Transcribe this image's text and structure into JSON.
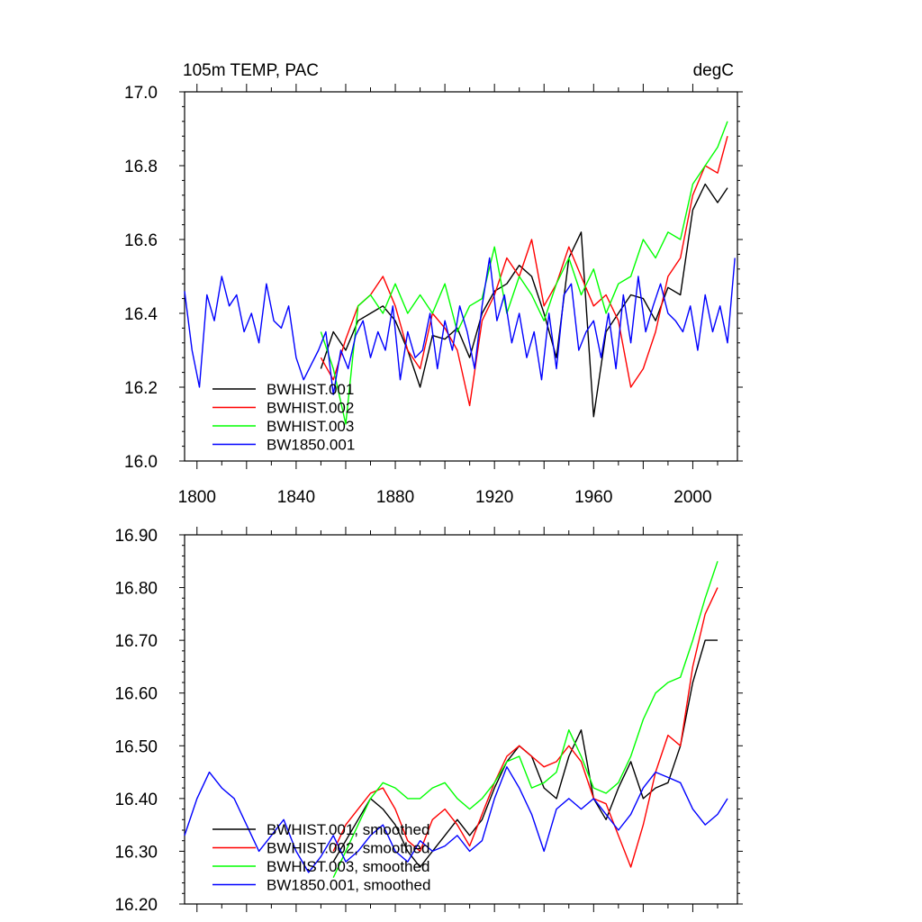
{
  "chart_data": [
    {
      "type": "line",
      "title_left": "105m TEMP, PAC",
      "title_right": "degC",
      "xlim": [
        1795,
        2018
      ],
      "ylim": [
        16.0,
        17.0
      ],
      "xticks": [
        "1800",
        "1840",
        "1880",
        "1920",
        "1960",
        "2000"
      ],
      "yticks": [
        "16.0",
        "16.2",
        "16.4",
        "16.6",
        "16.8",
        "17.0"
      ],
      "legend_position": "bottom-left",
      "series": [
        {
          "name": "BWHIST.001",
          "color": "#000000",
          "x": [
            1850,
            1855,
            1860,
            1865,
            1870,
            1875,
            1880,
            1885,
            1890,
            1895,
            1900,
            1905,
            1910,
            1915,
            1920,
            1925,
            1930,
            1935,
            1940,
            1945,
            1950,
            1955,
            1960,
            1965,
            1970,
            1975,
            1980,
            1985,
            1990,
            1995,
            2000,
            2005,
            2010,
            2014
          ],
          "values": [
            16.25,
            16.35,
            16.3,
            16.38,
            16.4,
            16.42,
            16.38,
            16.3,
            16.2,
            16.34,
            16.33,
            16.36,
            16.28,
            16.4,
            16.46,
            16.48,
            16.53,
            16.5,
            16.4,
            16.28,
            16.55,
            16.62,
            16.12,
            16.35,
            16.4,
            16.45,
            16.44,
            16.38,
            16.47,
            16.45,
            16.68,
            16.75,
            16.7,
            16.74
          ]
        },
        {
          "name": "BWHIST.002",
          "color": "#ff0000",
          "x": [
            1850,
            1855,
            1860,
            1865,
            1870,
            1875,
            1880,
            1885,
            1890,
            1895,
            1900,
            1905,
            1910,
            1915,
            1920,
            1925,
            1930,
            1935,
            1940,
            1945,
            1950,
            1955,
            1960,
            1965,
            1970,
            1975,
            1980,
            1985,
            1990,
            1995,
            2000,
            2005,
            2010,
            2014
          ],
          "values": [
            16.28,
            16.22,
            16.33,
            16.42,
            16.45,
            16.5,
            16.42,
            16.3,
            16.25,
            16.4,
            16.36,
            16.3,
            16.15,
            16.38,
            16.45,
            16.55,
            16.5,
            16.6,
            16.42,
            16.48,
            16.58,
            16.5,
            16.42,
            16.45,
            16.38,
            16.2,
            16.25,
            16.35,
            16.5,
            16.55,
            16.72,
            16.8,
            16.78,
            16.88
          ]
        },
        {
          "name": "BWHIST.003",
          "color": "#00ff00",
          "x": [
            1850,
            1855,
            1860,
            1865,
            1870,
            1875,
            1880,
            1885,
            1890,
            1895,
            1900,
            1905,
            1910,
            1915,
            1920,
            1925,
            1930,
            1935,
            1940,
            1945,
            1950,
            1955,
            1960,
            1965,
            1970,
            1975,
            1980,
            1985,
            1990,
            1995,
            2000,
            2005,
            2010,
            2014
          ],
          "values": [
            16.35,
            16.25,
            16.1,
            16.42,
            16.45,
            16.4,
            16.48,
            16.4,
            16.45,
            16.4,
            16.48,
            16.35,
            16.42,
            16.44,
            16.58,
            16.4,
            16.5,
            16.45,
            16.38,
            16.48,
            16.55,
            16.45,
            16.52,
            16.4,
            16.48,
            16.5,
            16.6,
            16.55,
            16.62,
            16.6,
            16.75,
            16.8,
            16.85,
            16.92
          ]
        },
        {
          "name": "BW1850.001",
          "color": "#0000ff",
          "x": [
            1795,
            1798,
            1801,
            1804,
            1807,
            1810,
            1813,
            1816,
            1819,
            1822,
            1825,
            1828,
            1831,
            1834,
            1837,
            1840,
            1843,
            1846,
            1849,
            1852,
            1855,
            1858,
            1861,
            1864,
            1867,
            1870,
            1873,
            1876,
            1879,
            1882,
            1885,
            1888,
            1891,
            1894,
            1897,
            1900,
            1903,
            1906,
            1909,
            1912,
            1915,
            1918,
            1921,
            1924,
            1927,
            1930,
            1933,
            1936,
            1939,
            1942,
            1945,
            1948,
            1951,
            1954,
            1957,
            1960,
            1963,
            1966,
            1969,
            1972,
            1975,
            1978,
            1981,
            1984,
            1987,
            1990,
            1993,
            1996,
            1999,
            2002,
            2005,
            2008,
            2011,
            2014,
            2017
          ],
          "values": [
            16.46,
            16.3,
            16.2,
            16.45,
            16.38,
            16.5,
            16.42,
            16.45,
            16.35,
            16.4,
            16.32,
            16.48,
            16.38,
            16.36,
            16.42,
            16.28,
            16.22,
            16.26,
            16.3,
            16.35,
            16.18,
            16.3,
            16.25,
            16.34,
            16.38,
            16.28,
            16.35,
            16.3,
            16.42,
            16.22,
            16.35,
            16.28,
            16.3,
            16.4,
            16.25,
            16.38,
            16.3,
            16.42,
            16.35,
            16.25,
            16.42,
            16.55,
            16.38,
            16.45,
            16.32,
            16.4,
            16.28,
            16.35,
            16.22,
            16.4,
            16.25,
            16.45,
            16.48,
            16.3,
            16.35,
            16.38,
            16.28,
            16.4,
            16.25,
            16.45,
            16.32,
            16.5,
            16.35,
            16.42,
            16.48,
            16.4,
            16.38,
            16.35,
            16.42,
            16.3,
            16.45,
            16.35,
            16.42,
            16.32,
            16.55
          ]
        }
      ]
    },
    {
      "type": "line",
      "xlim": [
        1795,
        2018
      ],
      "ylim": [
        16.2,
        16.9
      ],
      "yticks": [
        "16.20",
        "16.30",
        "16.40",
        "16.50",
        "16.60",
        "16.70",
        "16.80",
        "16.90"
      ],
      "legend_position": "bottom-left",
      "series": [
        {
          "name": "BWHIST.001, smoothed",
          "color": "#000000",
          "x": [
            1855,
            1860,
            1865,
            1870,
            1875,
            1880,
            1885,
            1890,
            1895,
            1900,
            1905,
            1910,
            1915,
            1920,
            1925,
            1930,
            1935,
            1940,
            1945,
            1950,
            1955,
            1960,
            1965,
            1970,
            1975,
            1980,
            1985,
            1990,
            1995,
            2000,
            2005,
            2010
          ],
          "values": [
            16.28,
            16.32,
            16.36,
            16.4,
            16.38,
            16.35,
            16.3,
            16.27,
            16.3,
            16.33,
            16.36,
            16.33,
            16.36,
            16.42,
            16.47,
            16.5,
            16.48,
            16.42,
            16.4,
            16.48,
            16.53,
            16.4,
            16.36,
            16.42,
            16.47,
            16.4,
            16.42,
            16.43,
            16.5,
            16.62,
            16.7,
            16.7
          ]
        },
        {
          "name": "BWHIST.002, smoothed",
          "color": "#ff0000",
          "x": [
            1855,
            1860,
            1865,
            1870,
            1875,
            1880,
            1885,
            1890,
            1895,
            1900,
            1905,
            1910,
            1915,
            1920,
            1925,
            1930,
            1935,
            1940,
            1945,
            1950,
            1955,
            1960,
            1965,
            1970,
            1975,
            1980,
            1985,
            1990,
            1995,
            2000,
            2005,
            2010
          ],
          "values": [
            16.3,
            16.35,
            16.38,
            16.41,
            16.42,
            16.38,
            16.32,
            16.3,
            16.36,
            16.38,
            16.35,
            16.31,
            16.37,
            16.43,
            16.48,
            16.5,
            16.48,
            16.46,
            16.47,
            16.5,
            16.47,
            16.4,
            16.39,
            16.33,
            16.27,
            16.35,
            16.45,
            16.52,
            16.5,
            16.65,
            16.75,
            16.8
          ]
        },
        {
          "name": "BWHIST.003, smoothed",
          "color": "#00ff00",
          "x": [
            1855,
            1860,
            1865,
            1870,
            1875,
            1880,
            1885,
            1890,
            1895,
            1900,
            1905,
            1910,
            1915,
            1920,
            1925,
            1930,
            1935,
            1940,
            1945,
            1950,
            1955,
            1960,
            1965,
            1970,
            1975,
            1980,
            1985,
            1990,
            1995,
            2000,
            2005,
            2010
          ],
          "values": [
            16.25,
            16.3,
            16.35,
            16.4,
            16.43,
            16.42,
            16.4,
            16.4,
            16.42,
            16.43,
            16.4,
            16.38,
            16.4,
            16.43,
            16.47,
            16.48,
            16.42,
            16.43,
            16.45,
            16.53,
            16.48,
            16.42,
            16.41,
            16.43,
            16.48,
            16.55,
            16.6,
            16.62,
            16.63,
            16.7,
            16.78,
            16.85
          ]
        },
        {
          "name": "BW1850.001, smoothed",
          "color": "#0000ff",
          "x": [
            1795,
            1800,
            1805,
            1810,
            1815,
            1820,
            1825,
            1830,
            1835,
            1840,
            1845,
            1850,
            1855,
            1860,
            1865,
            1870,
            1875,
            1880,
            1885,
            1890,
            1895,
            1900,
            1905,
            1910,
            1915,
            1920,
            1925,
            1930,
            1935,
            1940,
            1945,
            1950,
            1955,
            1960,
            1965,
            1970,
            1975,
            1980,
            1985,
            1990,
            1995,
            2000,
            2005,
            2010,
            2014
          ],
          "values": [
            16.33,
            16.4,
            16.45,
            16.42,
            16.4,
            16.35,
            16.3,
            16.33,
            16.36,
            16.3,
            16.26,
            16.29,
            16.33,
            16.28,
            16.3,
            16.33,
            16.35,
            16.3,
            16.28,
            16.32,
            16.3,
            16.31,
            16.33,
            16.3,
            16.32,
            16.4,
            16.46,
            16.42,
            16.37,
            16.3,
            16.38,
            16.4,
            16.38,
            16.4,
            16.37,
            16.34,
            16.37,
            16.42,
            16.45,
            16.44,
            16.43,
            16.38,
            16.35,
            16.37,
            16.4
          ]
        }
      ]
    }
  ]
}
